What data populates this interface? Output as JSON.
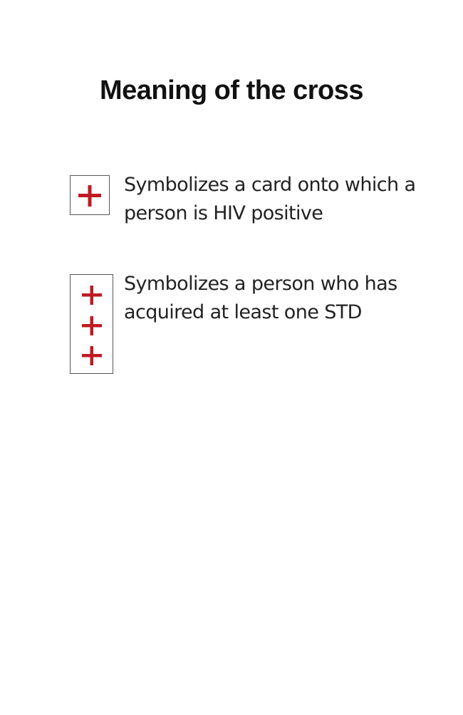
{
  "title": "Meaning of the cross",
  "colors": {
    "cross": "#c01a24",
    "box_border": "#555555"
  },
  "legend": [
    {
      "icon": "single-cross-icon",
      "crosses": 1,
      "text": "Symbolizes a card onto which a person is HIV positive"
    },
    {
      "icon": "triple-cross-icon",
      "crosses": 3,
      "text": "Symbolizes a person who has acquired at least one STD"
    }
  ]
}
